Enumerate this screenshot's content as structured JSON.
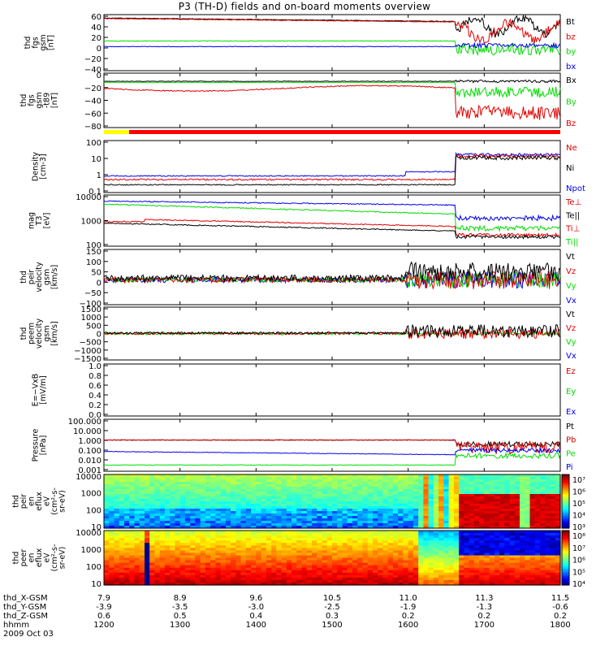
{
  "title": "P3 (TH-D) fields and on-board moments overview",
  "colors": {
    "black": "#000000",
    "red": "#e00000",
    "green": "#00dd00",
    "blue": "#0000ee"
  },
  "chart_data": {
    "type": "line",
    "x_axis": {
      "ticks": [
        "1200",
        "1300",
        "1400",
        "1500",
        "1600",
        "1700",
        "1800"
      ],
      "ephemeris": [
        {
          "label": "thd_X-GSM",
          "values": [
            "7.9",
            "8.9",
            "9.6",
            "10.5",
            "11.0",
            "11.3",
            "11.5"
          ]
        },
        {
          "label": "thd_Y-GSM",
          "values": [
            "-3.9",
            "-3.5",
            "-3.0",
            "-2.5",
            "-1.9",
            "-1.3",
            "-0.6"
          ]
        },
        {
          "label": "thd_Z-GSM",
          "values": [
            "0.6",
            "0.5",
            "0.4",
            "0.3",
            "0.2",
            "0.2",
            "0.2"
          ]
        },
        {
          "label": "hhmm",
          "values": [
            "1200",
            "1300",
            "1400",
            "1500",
            "1600",
            "1700",
            "1800"
          ]
        }
      ],
      "date": "2009 Oct 03"
    },
    "panels": [
      {
        "id": "fgs_gsm",
        "ylabel": [
          "thd",
          "fgs",
          "gsm",
          "[nT]"
        ],
        "scale": "linear",
        "ticks": [
          "60",
          "40",
          "20",
          "0",
          "−20",
          "−40"
        ],
        "legend": [
          {
            "text": "Bt",
            "color": "black"
          },
          {
            "text": "bz",
            "color": "red"
          },
          {
            "text": "by",
            "color": "green"
          },
          {
            "text": "bx",
            "color": "blue"
          }
        ]
      },
      {
        "id": "fgs_gsm_t89",
        "ylabel": [
          "thd",
          "fgs",
          "gsm",
          "-t89",
          "[nT]"
        ],
        "scale": "linear",
        "ticks": [
          "0",
          "−20",
          "−40",
          "−60",
          "−80"
        ],
        "legend": [
          {
            "text": "Bx",
            "color": "black"
          },
          {
            "text": "By",
            "color": "green"
          },
          {
            "text": "Bz",
            "color": "red"
          }
        ]
      },
      {
        "id": "density",
        "ylabel": [
          "Density",
          "[cm-3]"
        ],
        "scale": "log",
        "ticks": [
          "100",
          "10",
          "1",
          "0.1"
        ],
        "legend": [
          {
            "text": "Ne",
            "color": "red"
          },
          {
            "text": "Ni",
            "color": "black"
          },
          {
            "text": "Npot",
            "color": "blue"
          }
        ]
      },
      {
        "id": "temperature",
        "ylabel": [
          "mag",
          "T3",
          "[eV]"
        ],
        "scale": "log",
        "ticks": [
          "10000",
          "1000",
          "100"
        ],
        "legend": [
          {
            "text": "Te⊥",
            "color": "red"
          },
          {
            "text": "Te||",
            "color": "black"
          },
          {
            "text": "Ti⊥",
            "color": "red"
          },
          {
            "text": "Ti||",
            "color": "green"
          }
        ]
      },
      {
        "id": "peir_velocity",
        "ylabel": [
          "thd",
          "peir",
          "velocity",
          "gsm",
          "[km/s]"
        ],
        "scale": "linear",
        "ticks": [
          "150",
          "100",
          "50",
          "0",
          "−50",
          "−100"
        ],
        "legend": [
          {
            "text": "Vt",
            "color": "black"
          },
          {
            "text": "Vz",
            "color": "red"
          },
          {
            "text": "Vy",
            "color": "green"
          },
          {
            "text": "Vx",
            "color": "blue"
          }
        ]
      },
      {
        "id": "peem_velocity",
        "ylabel": [
          "thd",
          "peem",
          "velocity",
          "gsm",
          "[km/s]"
        ],
        "scale": "linear",
        "ticks": [
          "1500",
          "1000",
          "500",
          "0",
          "−500",
          "−1000",
          "−1500"
        ],
        "legend": [
          {
            "text": "Vt",
            "color": "black"
          },
          {
            "text": "Vz",
            "color": "red"
          },
          {
            "text": "Vy",
            "color": "green"
          },
          {
            "text": "Vx",
            "color": "blue"
          }
        ]
      },
      {
        "id": "efield",
        "ylabel": [
          "E=−VxB",
          "[mV/m]"
        ],
        "scale": "linear",
        "ticks": [
          "1.0",
          "0.8",
          "0.6",
          "0.4",
          "0.2",
          "0.0"
        ],
        "legend": [
          {
            "text": "Ez",
            "color": "red"
          },
          {
            "text": "Ey",
            "color": "green"
          },
          {
            "text": "Ex",
            "color": "blue"
          }
        ]
      },
      {
        "id": "pressure",
        "ylabel": [
          "Pressure",
          "[nPa]"
        ],
        "scale": "log",
        "ticks": [
          "100.000",
          "10.000",
          "1.000",
          "0.100",
          "0.010",
          "0.001"
        ],
        "legend": [
          {
            "text": "Pt",
            "color": "black"
          },
          {
            "text": "Pb",
            "color": "red"
          },
          {
            "text": "Pe",
            "color": "green"
          },
          {
            "text": "Pi",
            "color": "blue"
          }
        ]
      },
      {
        "id": "peir_spectrogram",
        "ylabel": [
          "thd",
          "peir",
          "en",
          "eflux",
          "eV",
          "(cm²-s-",
          "sr-eV)"
        ],
        "scale": "log",
        "ticks": [
          "10000",
          "1000",
          "100",
          "10"
        ],
        "colorbar": [
          "10⁷",
          "10⁶",
          "10⁵",
          "10⁴",
          "10³"
        ]
      },
      {
        "id": "peer_spectrogram",
        "ylabel": [
          "thd",
          "peer",
          "en",
          "eflux",
          "eV",
          "(cm²-s-",
          "sr-eV)"
        ],
        "scale": "log",
        "ticks": [
          "10000",
          "1000",
          "100",
          "10"
        ],
        "colorbar": [
          "10⁸",
          "10⁷",
          "10⁶",
          "10⁵",
          "10⁴"
        ]
      }
    ]
  }
}
